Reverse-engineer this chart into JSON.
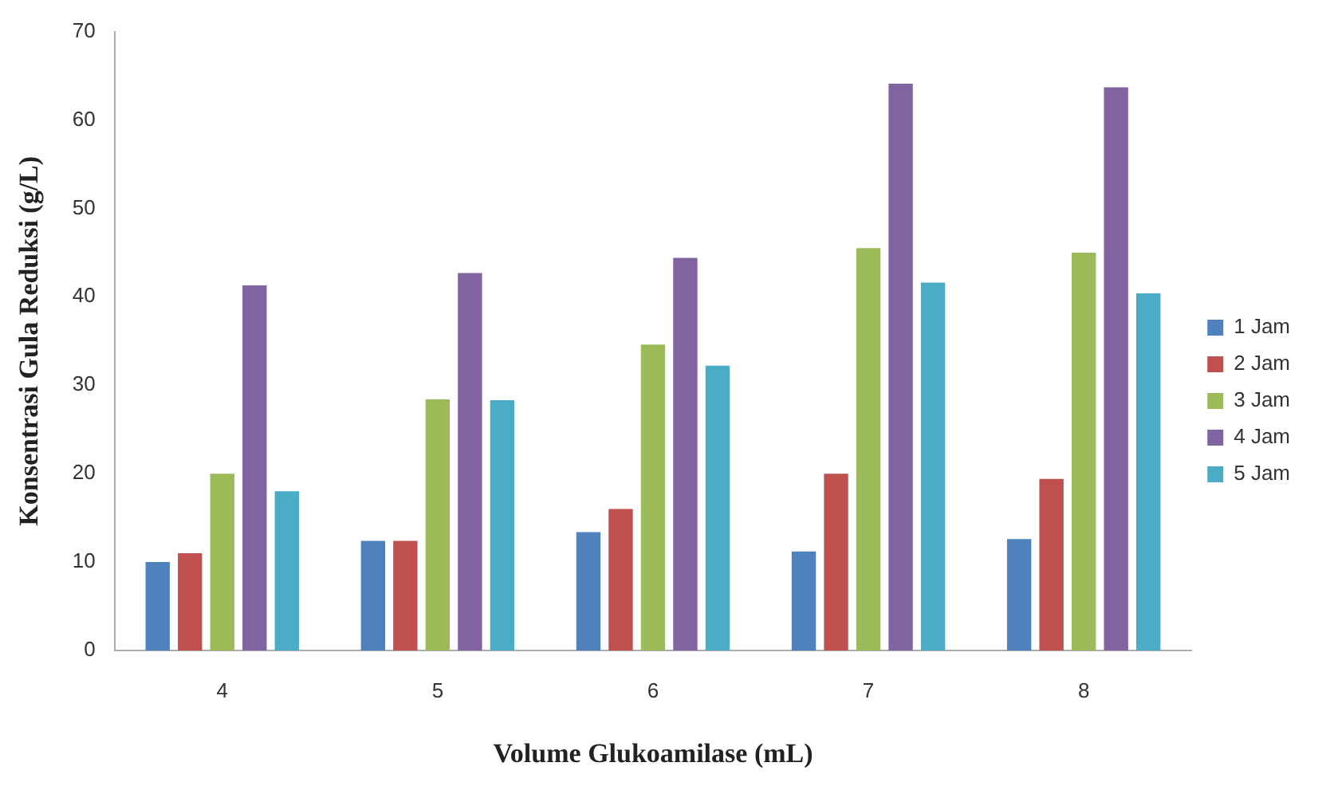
{
  "chart_data": {
    "type": "bar",
    "xlabel": "Volume Glukoamilase (mL)",
    "ylabel": "Konsentrasi Gula Reduksi (g/L)",
    "categories": [
      "4",
      "5",
      "6",
      "7",
      "8"
    ],
    "series": [
      {
        "name": "1 Jam",
        "color": "#4f81bd",
        "values": [
          10,
          12.4,
          13.4,
          11.2,
          12.6
        ]
      },
      {
        "name": "2 Jam",
        "color": "#c0504d",
        "values": [
          11,
          12.4,
          16,
          20,
          19.4
        ]
      },
      {
        "name": "3 Jam",
        "color": "#9bbb59",
        "values": [
          20,
          28.4,
          34.6,
          45.5,
          45
        ]
      },
      {
        "name": "4 Jam",
        "color": "#8064a2",
        "values": [
          41.3,
          42.7,
          44.4,
          64.1,
          63.7
        ]
      },
      {
        "name": "5 Jam",
        "color": "#4bacc6",
        "values": [
          18,
          28.3,
          32.2,
          41.6,
          40.4
        ]
      }
    ],
    "ylim": [
      0,
      70
    ],
    "yticks": [
      0,
      10,
      20,
      30,
      40,
      50,
      60,
      70
    ],
    "grid": false,
    "legend": "right"
  }
}
